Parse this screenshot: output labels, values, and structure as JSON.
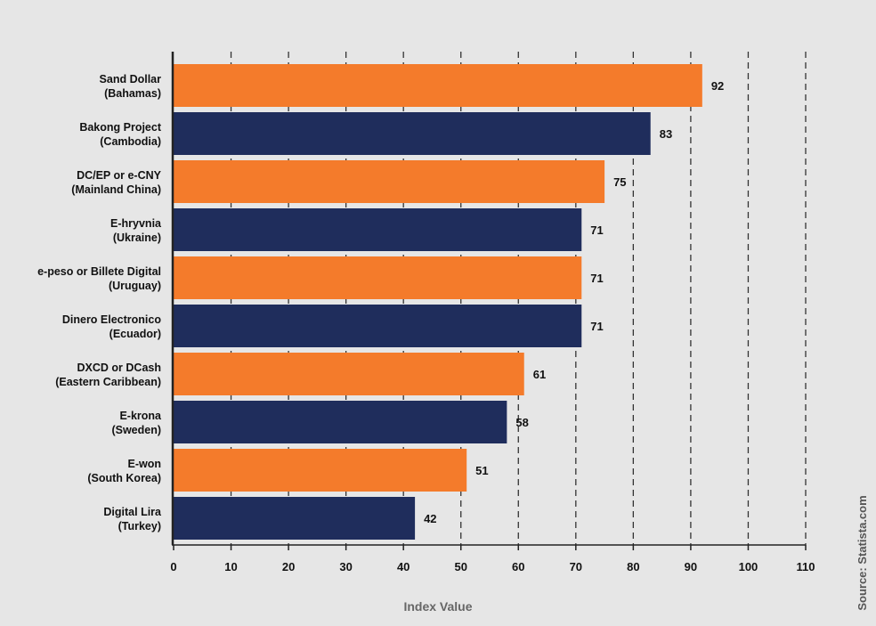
{
  "chart_data": {
    "type": "bar",
    "orientation": "horizontal",
    "categories": [
      [
        "Sand Dollar",
        "(Bahamas)"
      ],
      [
        "Bakong Project",
        "(Cambodia)"
      ],
      [
        "DC/EP or e-CNY",
        "(Mainland China)"
      ],
      [
        "E-hryvnia",
        "(Ukraine)"
      ],
      [
        "e-peso or Billete Digital",
        "(Uruguay)"
      ],
      [
        "Dinero Electronico",
        "(Ecuador)"
      ],
      [
        "DXCD or DCash",
        "(Eastern Caribbean)"
      ],
      [
        "E-krona",
        "(Sweden)"
      ],
      [
        "E-won",
        "(South Korea)"
      ],
      [
        "Digital Lira",
        "(Turkey)"
      ]
    ],
    "values": [
      92,
      83,
      75,
      71,
      71,
      71,
      61,
      58,
      51,
      42
    ],
    "xlabel": "Index Value",
    "xlim": [
      0,
      110
    ],
    "xticks": [
      0,
      10,
      20,
      30,
      40,
      50,
      60,
      70,
      80,
      90,
      100,
      110
    ],
    "grid": "dashed vertical",
    "colors": [
      "#f47b2b",
      "#1f2d5c"
    ],
    "source": "Source: Statista.com"
  }
}
